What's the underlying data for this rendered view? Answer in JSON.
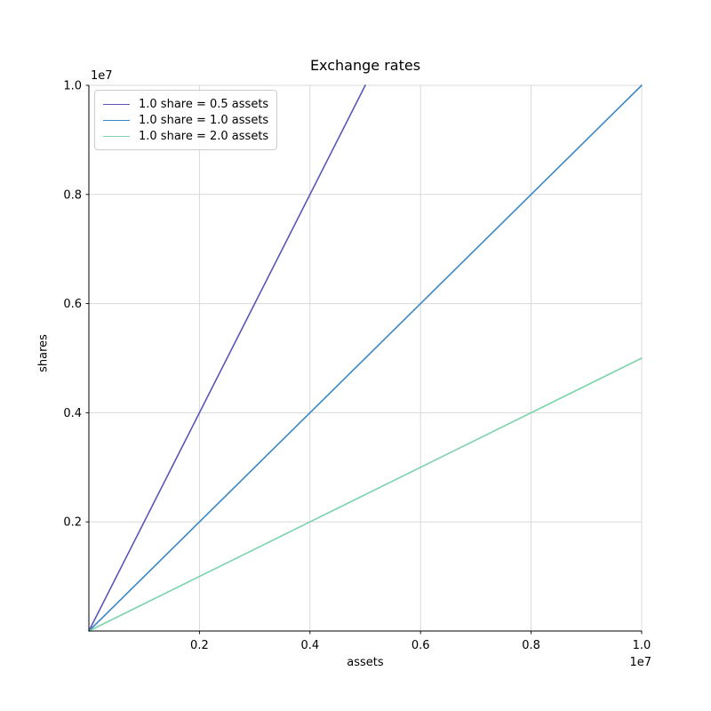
{
  "chart_data": {
    "type": "line",
    "title": "Exchange rates",
    "xlabel": "assets",
    "ylabel": "shares",
    "offset_text": "1e7",
    "xlim": [
      0,
      10000000
    ],
    "ylim": [
      0,
      10000000
    ],
    "x_ticks": [
      2000000,
      4000000,
      6000000,
      8000000,
      10000000
    ],
    "x_tick_labels": [
      "0.2",
      "0.4",
      "0.6",
      "0.8",
      "1.0"
    ],
    "y_ticks": [
      2000000,
      4000000,
      6000000,
      8000000,
      10000000
    ],
    "y_tick_labels": [
      "0.2",
      "0.4",
      "0.6",
      "0.8",
      "1.0"
    ],
    "grid": true,
    "legend_position": "upper left",
    "series": [
      {
        "name": "1.0 share = 0.5 assets",
        "color": "#5b55b8",
        "x": [
          0,
          5000000
        ],
        "y": [
          0,
          10000000
        ]
      },
      {
        "name": "1.0 share = 1.0 assets",
        "color": "#3b87c5",
        "x": [
          0,
          10000000
        ],
        "y": [
          0,
          10000000
        ]
      },
      {
        "name": "1.0 share = 2.0 assets",
        "color": "#7dd3ab",
        "x": [
          0,
          10000000
        ],
        "y": [
          0,
          5000000
        ]
      }
    ]
  }
}
